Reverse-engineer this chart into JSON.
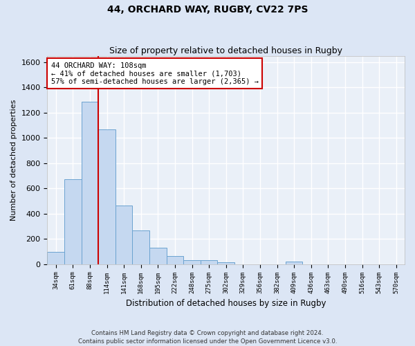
{
  "title": "44, ORCHARD WAY, RUGBY, CV22 7PS",
  "subtitle": "Size of property relative to detached houses in Rugby",
  "xlabel": "Distribution of detached houses by size in Rugby",
  "ylabel": "Number of detached properties",
  "footer": "Contains HM Land Registry data © Crown copyright and database right 2024.\nContains public sector information licensed under the Open Government Licence v3.0.",
  "bin_labels": [
    "34sqm",
    "61sqm",
    "88sqm",
    "114sqm",
    "141sqm",
    "168sqm",
    "195sqm",
    "222sqm",
    "248sqm",
    "275sqm",
    "302sqm",
    "329sqm",
    "356sqm",
    "382sqm",
    "409sqm",
    "436sqm",
    "463sqm",
    "490sqm",
    "516sqm",
    "543sqm",
    "570sqm"
  ],
  "bar_heights": [
    95,
    670,
    1285,
    1065,
    465,
    265,
    128,
    65,
    32,
    33,
    15,
    0,
    0,
    0,
    22,
    0,
    0,
    0,
    0,
    0,
    0
  ],
  "bar_color": "#c5d8f0",
  "bar_edge_color": "#6ba3d0",
  "vline_x": 2.5,
  "vline_color": "#cc0000",
  "annotation_text": "44 ORCHARD WAY: 108sqm\n← 41% of detached houses are smaller (1,703)\n57% of semi-detached houses are larger (2,365) →",
  "annotation_box_color": "white",
  "annotation_box_edge_color": "#cc0000",
  "ylim": [
    0,
    1650
  ],
  "yticks": [
    0,
    200,
    400,
    600,
    800,
    1000,
    1200,
    1400,
    1600
  ],
  "bg_color": "#dce6f5",
  "plot_bg_color": "#eaf0f8",
  "grid_color": "white",
  "figsize": [
    6.0,
    5.0
  ],
  "dpi": 100,
  "title_fontsize": 10,
  "subtitle_fontsize": 9
}
